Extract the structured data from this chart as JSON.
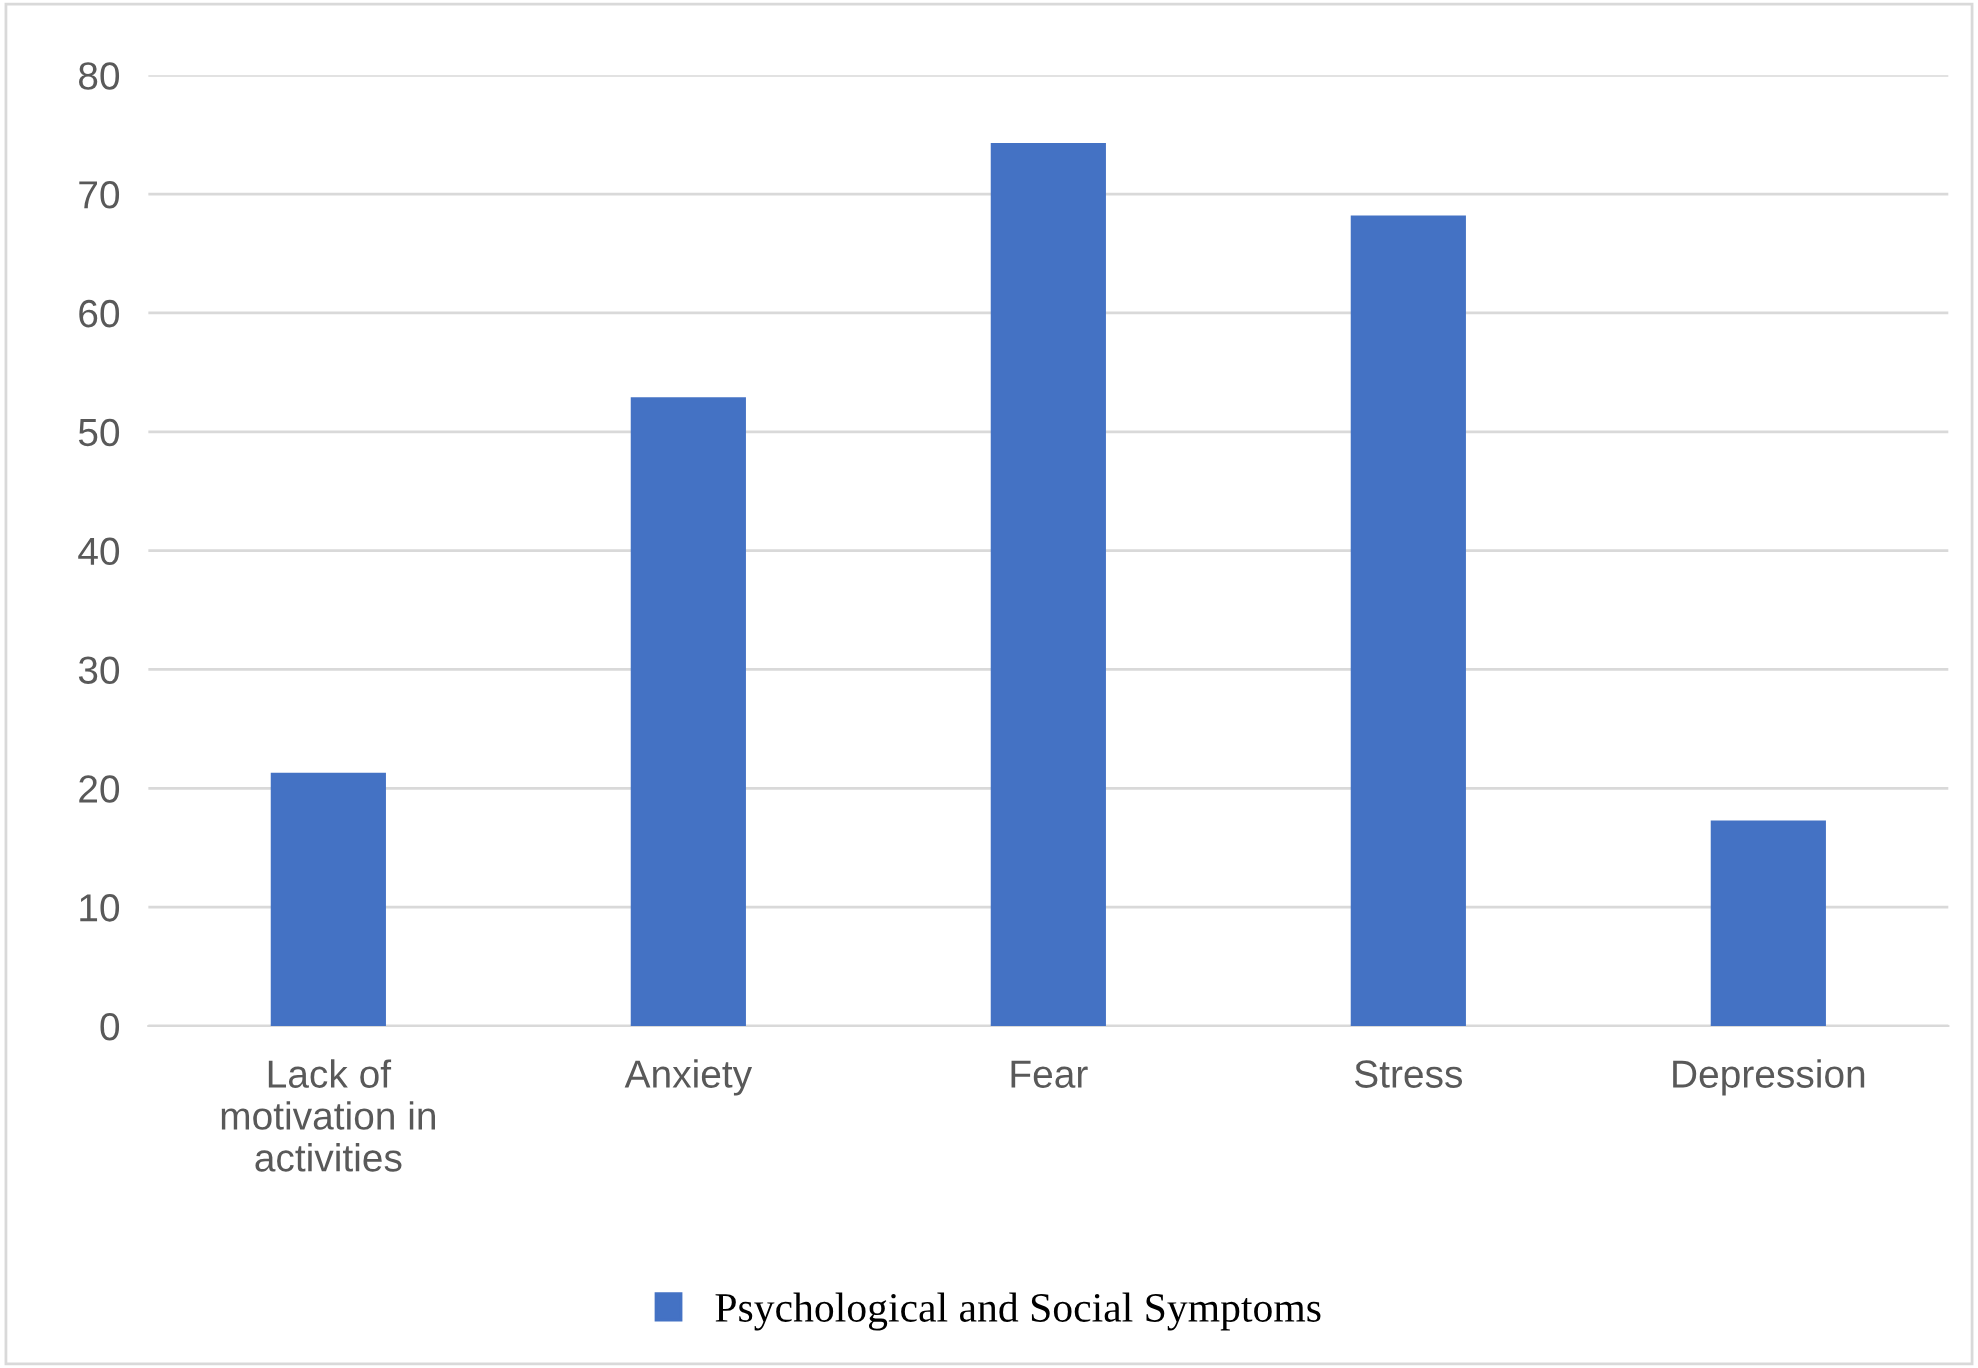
{
  "chart_data": {
    "type": "bar",
    "categories": [
      "Lack of motivation in activities",
      "Anxiety",
      "Fear",
      "Stress",
      "Depression"
    ],
    "series": [
      {
        "name": "Psychological and Social Symptoms",
        "color": "#4472c4",
        "values": [
          21.3,
          52.9,
          74.3,
          68.2,
          17.3
        ]
      }
    ],
    "ylim": [
      0,
      80
    ],
    "yticks": [
      0,
      10,
      20,
      30,
      40,
      50,
      60,
      70,
      80
    ],
    "grid": "y",
    "legend": "bottom"
  }
}
